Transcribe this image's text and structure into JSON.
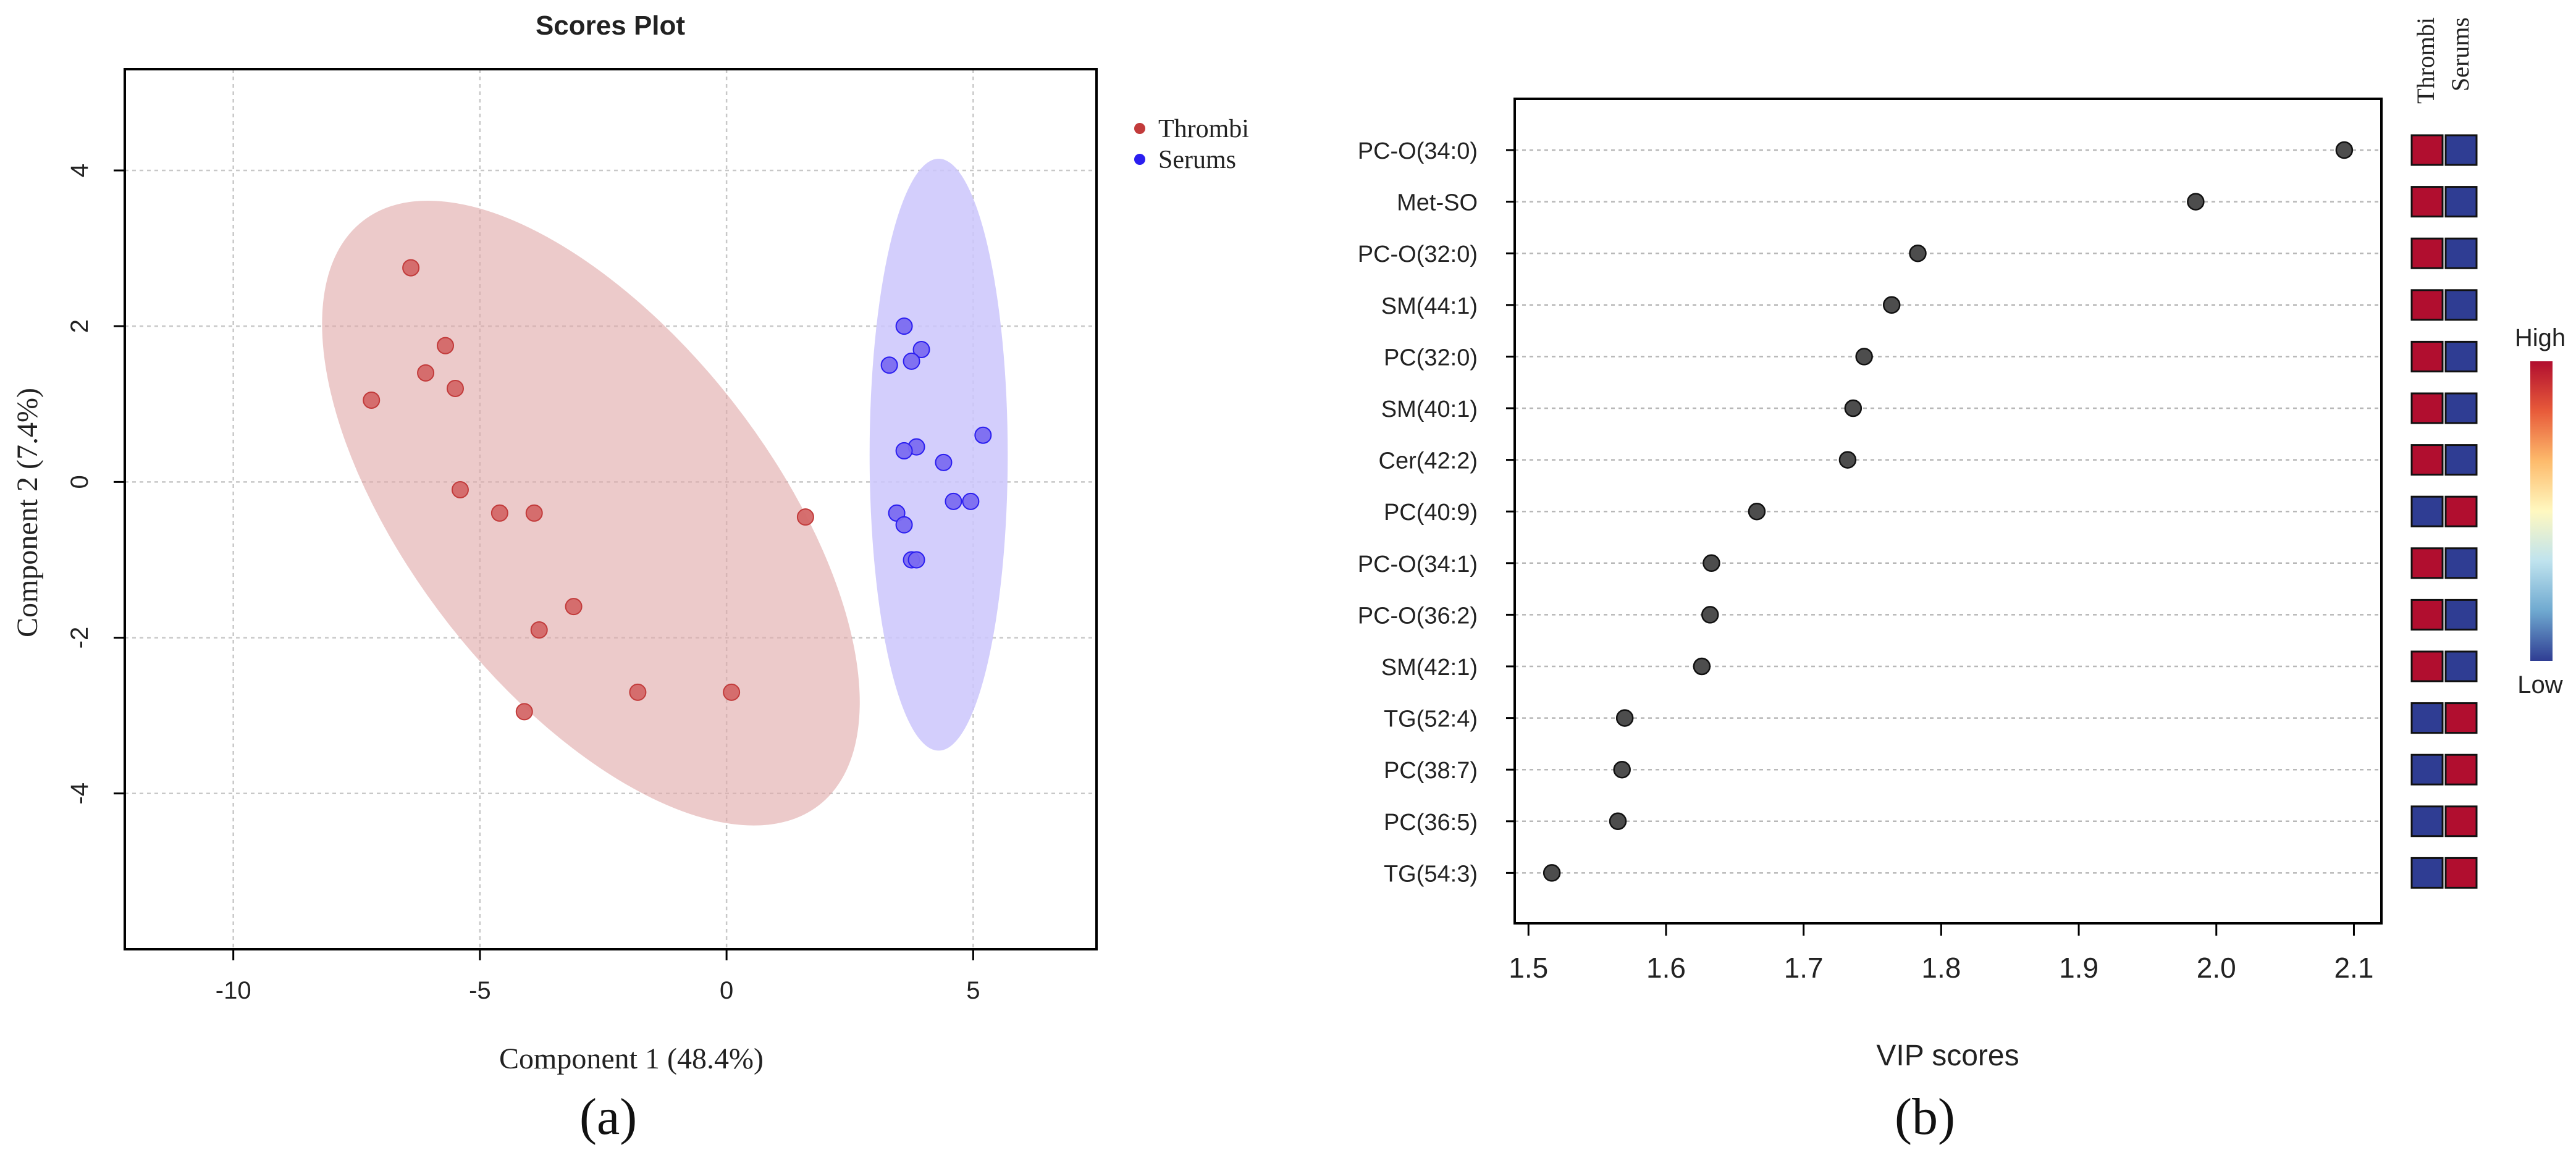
{
  "chart_data": [
    {
      "type": "scatter",
      "title": "Scores Plot",
      "xlabel": "Component 1 (48.4%)",
      "ylabel": "Component 2 (7.4%)",
      "xlim": [
        -12.2,
        7.5
      ],
      "ylim": [
        -6,
        5.3
      ],
      "xticks": [
        -10,
        -5,
        0,
        5
      ],
      "yticks": [
        -4,
        -2,
        0,
        2,
        4
      ],
      "grid": true,
      "legend_position": "top-right",
      "caption": "(a)",
      "series": [
        {
          "name": "Thrombi",
          "color": "#c23b3b",
          "marker_color": "#d46767",
          "ellipse_color": "#e0a9a9",
          "ellipse": {
            "cx": -2.75,
            "cy": -0.4,
            "rx": 7.6,
            "ry": 2.25,
            "angle_deg": -38
          },
          "points": [
            {
              "x": -6.4,
              "y": 2.75
            },
            {
              "x": -5.7,
              "y": 1.75
            },
            {
              "x": -6.1,
              "y": 1.4
            },
            {
              "x": -5.5,
              "y": 1.2
            },
            {
              "x": -7.2,
              "y": 1.05
            },
            {
              "x": -5.4,
              "y": -0.1
            },
            {
              "x": -4.6,
              "y": -0.4
            },
            {
              "x": -3.9,
              "y": -0.4
            },
            {
              "x": -3.1,
              "y": -1.6
            },
            {
              "x": -3.8,
              "y": -1.9
            },
            {
              "x": -4.1,
              "y": -2.95
            },
            {
              "x": -1.8,
              "y": -2.7
            },
            {
              "x": 0.1,
              "y": -2.7
            },
            {
              "x": 1.6,
              "y": -0.45
            }
          ]
        },
        {
          "name": "Serums",
          "color": "#2a1ef0",
          "marker_color": "#7b6cf0",
          "ellipse_color": "#cbc6fb",
          "ellipse": {
            "cx": 4.3,
            "cy": 0.35,
            "rx": 1.4,
            "ry": 3.8,
            "angle_deg": 0
          },
          "points": [
            {
              "x": 3.6,
              "y": 2.0
            },
            {
              "x": 3.95,
              "y": 1.7
            },
            {
              "x": 3.75,
              "y": 1.55
            },
            {
              "x": 3.3,
              "y": 1.5
            },
            {
              "x": 5.2,
              "y": 0.6
            },
            {
              "x": 3.85,
              "y": 0.45
            },
            {
              "x": 3.6,
              "y": 0.4
            },
            {
              "x": 4.4,
              "y": 0.25
            },
            {
              "x": 4.6,
              "y": -0.25
            },
            {
              "x": 4.95,
              "y": -0.25
            },
            {
              "x": 3.45,
              "y": -0.4
            },
            {
              "x": 3.6,
              "y": -0.55
            },
            {
              "x": 3.75,
              "y": -1.0
            },
            {
              "x": 3.85,
              "y": -1.0
            }
          ]
        }
      ]
    },
    {
      "type": "dot",
      "title": "",
      "xlabel": "VIP scores",
      "xlim": [
        1.49,
        2.12
      ],
      "xticks": [
        1.5,
        1.6,
        1.7,
        1.8,
        1.9,
        2.0,
        2.1
      ],
      "xtick_labels": [
        "1.5",
        "1.6",
        "1.7",
        "1.8",
        "1.9",
        "2.0",
        "2.1"
      ],
      "caption": "(b)",
      "categories": [
        "PC-O(34:0)",
        "Met-SO",
        "PC-O(32:0)",
        "SM(44:1)",
        "PC(32:0)",
        "SM(40:1)",
        "Cer(42:2)",
        "PC(40:9)",
        "PC-O(34:1)",
        "PC-O(36:2)",
        "SM(42:1)",
        "TG(52:4)",
        "PC(38:7)",
        "PC(36:5)",
        "TG(54:3)"
      ],
      "values": [
        2.093,
        1.985,
        1.783,
        1.764,
        1.744,
        1.736,
        1.732,
        1.666,
        1.633,
        1.632,
        1.626,
        1.57,
        1.568,
        1.565,
        1.517
      ],
      "heatmap": {
        "columns": [
          "Thrombi",
          "Serums"
        ],
        "levels": [
          [
            "high",
            "low"
          ],
          [
            "high",
            "low"
          ],
          [
            "high",
            "low"
          ],
          [
            "high",
            "low"
          ],
          [
            "high",
            "low"
          ],
          [
            "high",
            "low"
          ],
          [
            "high",
            "low"
          ],
          [
            "low",
            "high"
          ],
          [
            "high",
            "low"
          ],
          [
            "high",
            "low"
          ],
          [
            "high",
            "low"
          ],
          [
            "low",
            "high"
          ],
          [
            "low",
            "high"
          ],
          [
            "low",
            "high"
          ],
          [
            "low",
            "high"
          ]
        ],
        "colors": {
          "high": "#b10e2f",
          "low": "#2f3d93"
        }
      },
      "colorbar": {
        "high_label": "High",
        "low_label": "Low",
        "gradient": [
          "#b10e2f",
          "#e85b3a",
          "#fdbb6c",
          "#fff8c0",
          "#bfe3ee",
          "#6fa9d0",
          "#2f3d93"
        ]
      }
    }
  ]
}
